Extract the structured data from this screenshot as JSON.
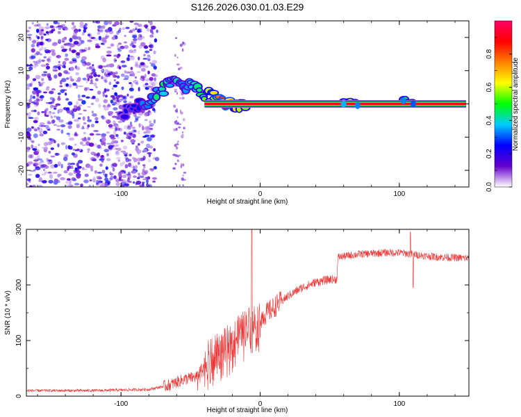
{
  "title": "S126.2026.030.01.03.E29",
  "chart_data": [
    {
      "type": "heatmap",
      "name": "spectrogram",
      "xlabel": "Height of straight line (km)",
      "ylabel": "Frequency (Hz)",
      "xlim": [
        -168,
        150
      ],
      "ylim": [
        -25,
        25
      ],
      "xticks": [
        -100,
        0,
        100
      ],
      "xtick_labels": [
        "-100",
        "0",
        "100"
      ],
      "yticks": [
        -20,
        -10,
        0,
        10,
        20
      ],
      "ytick_labels": [
        "-20",
        "-10",
        "0",
        "10",
        "20"
      ],
      "carrier": {
        "frequency_hz": 0,
        "from_km": -40,
        "to_km": 148,
        "amplitude": 0.95
      },
      "noise_region_km": [
        -168,
        -74
      ],
      "ridge_points": [
        {
          "x": -100,
          "y": -3,
          "amp": 0.25
        },
        {
          "x": -90,
          "y": -1,
          "amp": 0.3
        },
        {
          "x": -80,
          "y": 1,
          "amp": 0.4
        },
        {
          "x": -70,
          "y": 4,
          "amp": 0.5
        },
        {
          "x": -62,
          "y": 8,
          "amp": 0.45
        },
        {
          "x": -55,
          "y": 5,
          "amp": 0.4
        },
        {
          "x": -48,
          "y": 6,
          "amp": 0.45
        },
        {
          "x": -42,
          "y": 3,
          "amp": 0.55
        },
        {
          "x": -36,
          "y": 2.5,
          "amp": 0.7
        },
        {
          "x": -25,
          "y": 0.6,
          "amp": 0.9
        },
        {
          "x": -15,
          "y": -1,
          "amp": 0.6
        },
        {
          "x": -8,
          "y": 1,
          "amp": 0.65
        },
        {
          "x": 60,
          "y": 0,
          "amp": 0.6
        },
        {
          "x": 70,
          "y": -0.5,
          "amp": 0.55
        },
        {
          "x": 103,
          "y": 1,
          "amp": 0.55
        },
        {
          "x": 110,
          "y": 0,
          "amp": 0.5
        }
      ],
      "colorbar": {
        "label": "Normalized spectral amplitude",
        "range": [
          0,
          1
        ],
        "ticks": [
          0.0,
          0.2,
          0.4,
          0.6,
          0.8
        ],
        "tick_labels": [
          "0.0",
          "0.2",
          "0.4",
          "0.6",
          "0.8"
        ],
        "colors": [
          "#ffffff",
          "#6600cc",
          "#0000ff",
          "#00ccff",
          "#00ff00",
          "#ffff00",
          "#ff8000",
          "#ff0000",
          "#ff0066"
        ]
      }
    },
    {
      "type": "line",
      "name": "snr",
      "xlabel": "Height of straight line (km)",
      "ylabel": "SNR (10 * v/v)",
      "xlim": [
        -168,
        150
      ],
      "ylim": [
        0,
        300
      ],
      "xticks": [
        -100,
        0,
        100
      ],
      "xtick_labels": [
        "-100",
        "0",
        "100"
      ],
      "yticks": [
        0,
        100,
        200,
        300
      ],
      "ytick_labels": [
        "0",
        "100",
        "200",
        "300"
      ],
      "color": "#ee3333",
      "trend": {
        "x": [
          -168,
          -120,
          -80,
          -65,
          -55,
          -45,
          -40,
          -30,
          -20,
          -10,
          0,
          10,
          20,
          30,
          40,
          50,
          55,
          56,
          70,
          90,
          100,
          110,
          120,
          130,
          150
        ],
        "y": [
          10,
          10,
          12,
          20,
          30,
          35,
          60,
          80,
          100,
          125,
          140,
          160,
          180,
          195,
          205,
          210,
          210,
          250,
          255,
          258,
          258,
          255,
          252,
          250,
          248
        ]
      },
      "spikes": [
        {
          "x": -6,
          "y": 300
        },
        {
          "x": 110,
          "y": 195
        },
        {
          "x": 108,
          "y": 295
        }
      ]
    }
  ]
}
